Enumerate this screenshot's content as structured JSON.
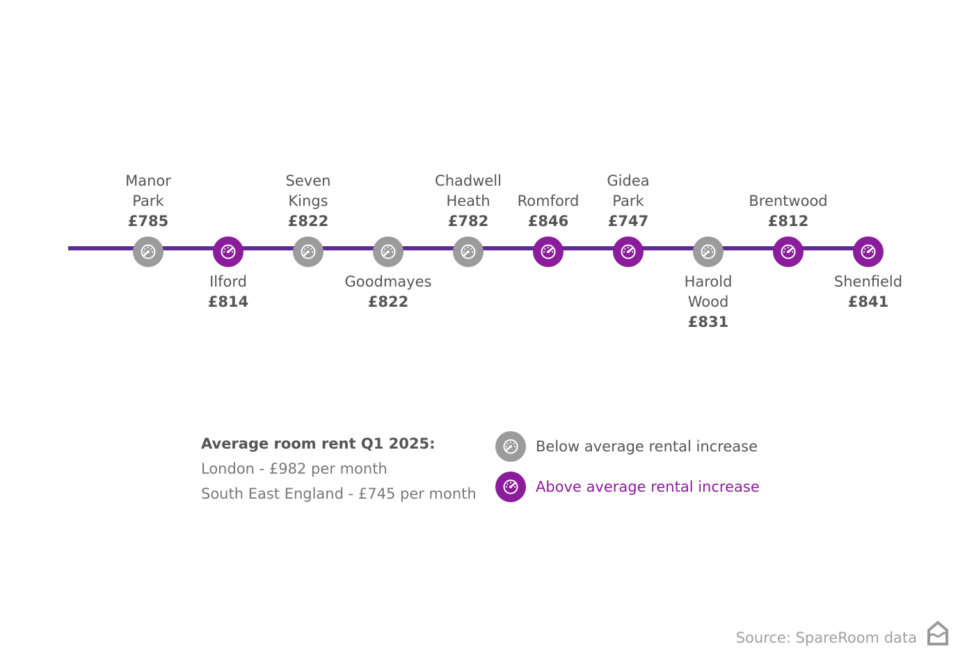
{
  "colors": {
    "above": "#8b1c9c",
    "below": "#9b9b9b",
    "line": "#5e2b94"
  },
  "stations": [
    {
      "name_lines": [
        "Manor",
        "Park"
      ],
      "price": "£785",
      "status": "below",
      "label_pos": "above"
    },
    {
      "name_lines": [
        "Ilford"
      ],
      "price": "£814",
      "status": "above",
      "label_pos": "below"
    },
    {
      "name_lines": [
        "Seven",
        "Kings"
      ],
      "price": "£822",
      "status": "below",
      "label_pos": "above"
    },
    {
      "name_lines": [
        "Goodmayes"
      ],
      "price": "£822",
      "status": "below",
      "label_pos": "below"
    },
    {
      "name_lines": [
        "Chadwell",
        "Heath"
      ],
      "price": "£782",
      "status": "below",
      "label_pos": "above"
    },
    {
      "name_lines": [
        "Romford"
      ],
      "price": "£846",
      "status": "above",
      "label_pos": "above"
    },
    {
      "name_lines": [
        "Gidea",
        "Park"
      ],
      "price": "£747",
      "status": "above",
      "label_pos": "above"
    },
    {
      "name_lines": [
        "Harold",
        "Wood"
      ],
      "price": "£831",
      "status": "below",
      "label_pos": "below"
    },
    {
      "name_lines": [
        "Brentwood"
      ],
      "price": "£812",
      "status": "above",
      "label_pos": "above"
    },
    {
      "name_lines": [
        "Shenfield"
      ],
      "price": "£841",
      "status": "above",
      "label_pos": "below"
    }
  ],
  "legend": {
    "heading": "Average room rent Q1 2025:",
    "london": "London - £982 per month",
    "south_east": "South East England - £745 per month",
    "below_label": "Below average rental increase",
    "above_label": "Above average rental increase"
  },
  "source": "Source: SpareRoom data",
  "icons": {
    "station": "speedometer-icon",
    "logo": "spareroom-house-icon"
  }
}
